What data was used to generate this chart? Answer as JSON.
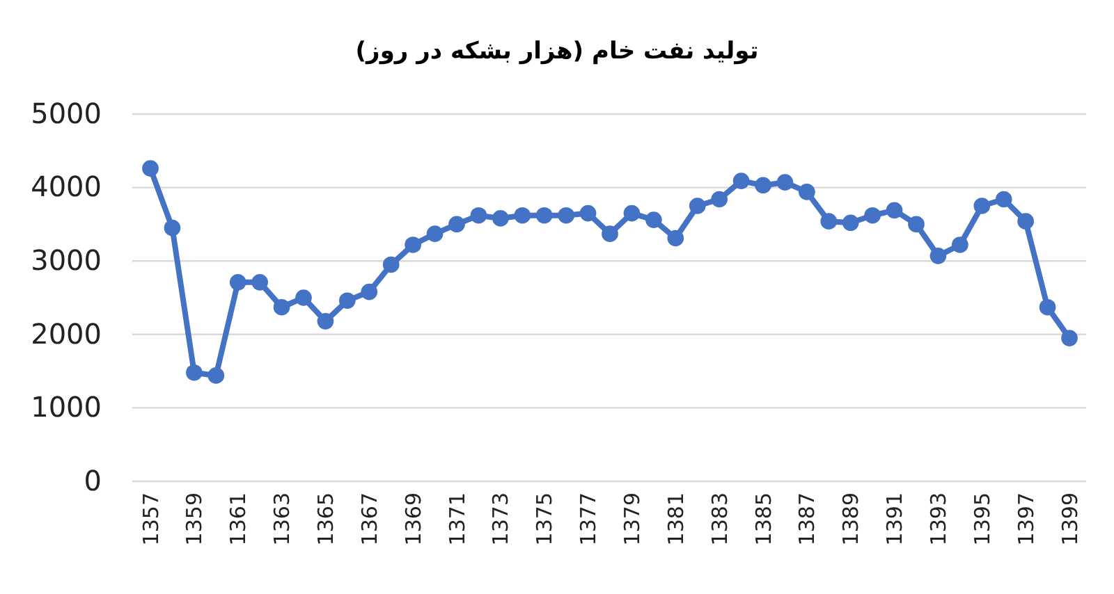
{
  "chart_data": {
    "type": "line",
    "title": "تولید نفت خام (هزار بشکه در روز)",
    "categories": [
      "1357",
      null,
      "1359",
      null,
      "1361",
      null,
      "1363",
      null,
      "1365",
      null,
      "1367",
      null,
      "1369",
      null,
      "1371",
      null,
      "1373",
      null,
      "1375",
      null,
      "1377",
      null,
      "1379",
      null,
      "1381",
      null,
      "1383",
      null,
      "1385",
      null,
      "1387",
      null,
      "1389",
      null,
      "1391",
      null,
      "1393",
      null,
      "1395",
      null,
      "1397",
      null,
      "1399"
    ],
    "series": [
      {
        "color": "#4472c4",
        "values": [
          4260,
          3450,
          1480,
          1440,
          2710,
          2710,
          2370,
          2500,
          2180,
          2460,
          2580,
          2950,
          3220,
          3370,
          3500,
          3620,
          3580,
          3620,
          3620,
          3620,
          3650,
          3370,
          3650,
          3560,
          3310,
          3750,
          3840,
          4090,
          4030,
          4070,
          3940,
          3540,
          3520,
          3620,
          3690,
          3500,
          3070,
          3220,
          3750,
          3840,
          3540,
          2370,
          1950
        ]
      }
    ],
    "ylim": [
      0,
      5000
    ],
    "yticks": [
      0,
      1000,
      2000,
      3000,
      4000,
      5000
    ],
    "grid": "y",
    "marker": "circle",
    "line_style": "solid"
  }
}
